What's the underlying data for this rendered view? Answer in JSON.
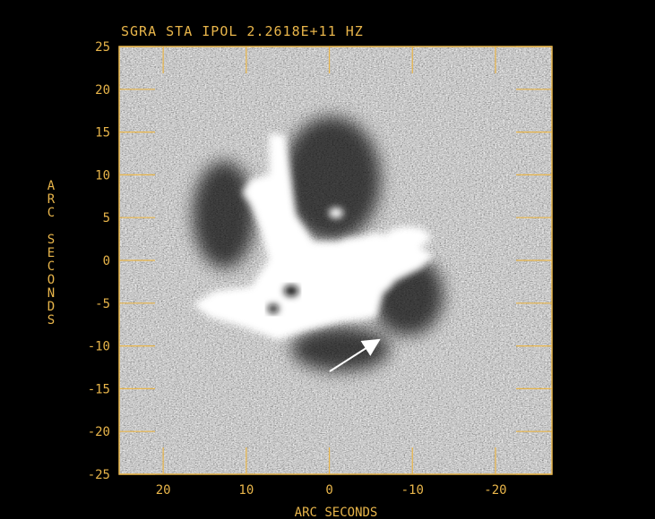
{
  "title": "SGRA STA IPOL  2.2618E+11 HZ",
  "xlabel": "ARC SECONDS",
  "ylabel": "ARC SECONDS",
  "x_ticks": [
    "20",
    "10",
    "0",
    "-10",
    "-20"
  ],
  "y_ticks": [
    "25",
    "20",
    "15",
    "10",
    "5",
    "0",
    "-5",
    "-10",
    "-15",
    "-20",
    "-25"
  ],
  "colors": {
    "background": "#000000",
    "annotation": "#e8b54a",
    "arrow": "#ffffff"
  },
  "image_description": "grayscale radio map with bright mini-spiral emission and dark cavity",
  "arrow": {
    "label": ""
  }
}
